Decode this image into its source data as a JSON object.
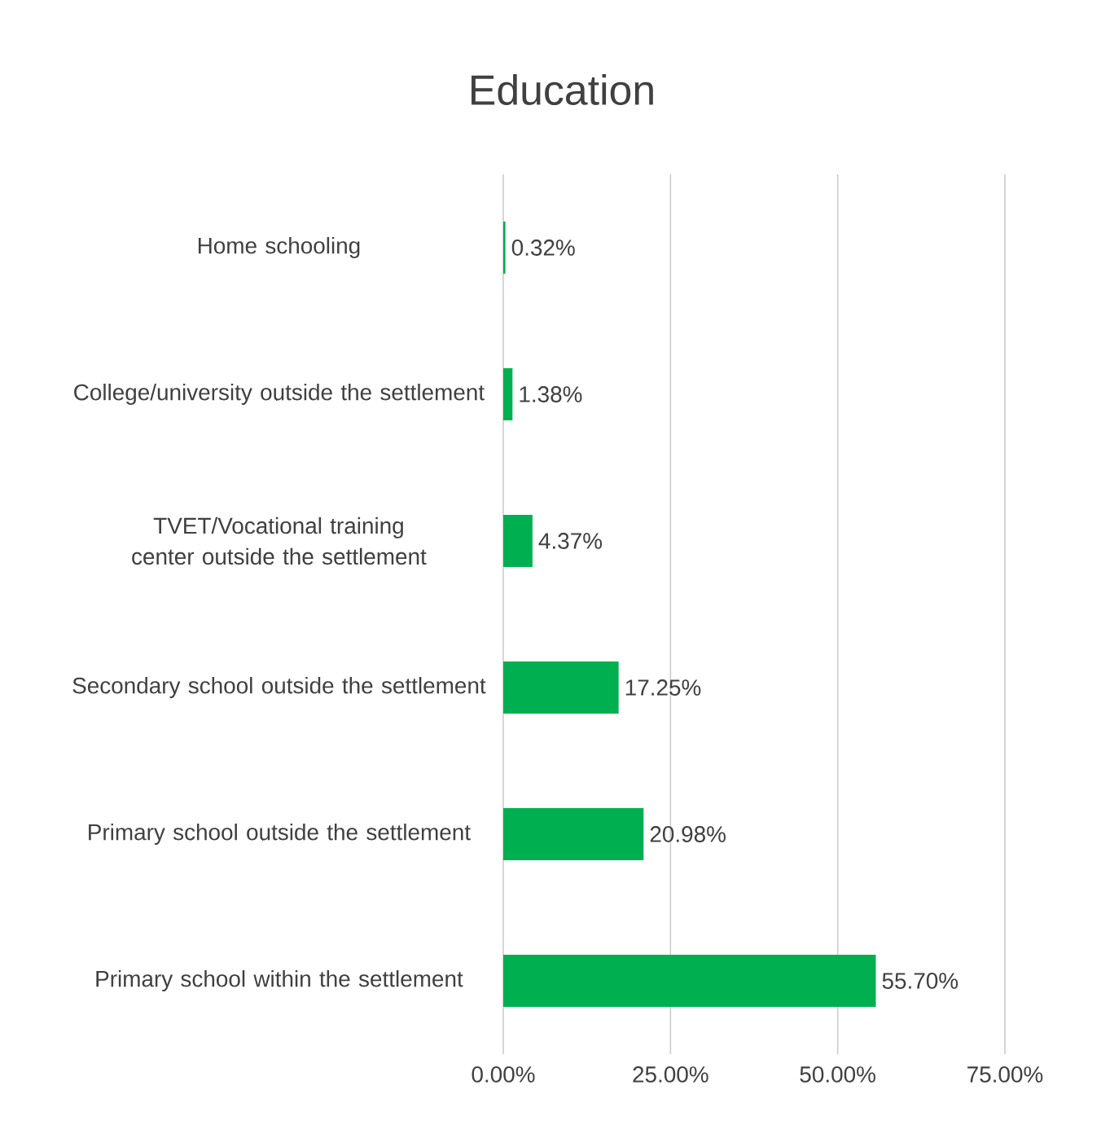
{
  "chart_data": {
    "type": "bar",
    "orientation": "horizontal",
    "title": "Education",
    "categories": [
      "Home schooling",
      "College/university outside the settlement",
      "TVET/Vocational training center outside the settlement",
      "Secondary school outside the settlement",
      "Primary school outside the settlement",
      "Primary school within the settlement"
    ],
    "values": [
      0.32,
      1.38,
      4.37,
      17.25,
      20.98,
      55.7
    ],
    "value_labels": [
      "0.32%",
      "1.38%",
      "4.37%",
      "17.25%",
      "20.98%",
      "55.70%"
    ],
    "color": "#00b050",
    "xlim": [
      0,
      75
    ],
    "xticks": [
      {
        "value": 0,
        "label": "0.00%"
      },
      {
        "value": 25,
        "label": "25.00%"
      },
      {
        "value": 50,
        "label": "50.00%"
      },
      {
        "value": 75,
        "label": "75.00%"
      }
    ],
    "grid": "x"
  }
}
